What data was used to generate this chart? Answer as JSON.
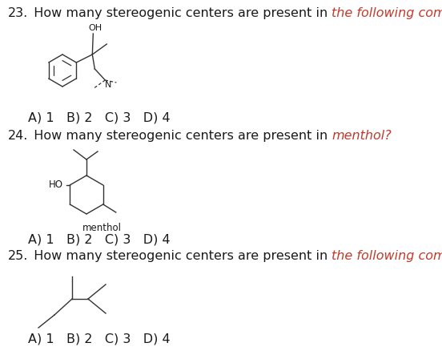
{
  "background_color": "#ffffff",
  "text_color": "#1a1a1a",
  "italic_color": "#c0392b",
  "line_color": "#333333",
  "font_size": 11.5,
  "q23_num": "23.",
  "q23_normal": "  How many stereogenic centers are present in ",
  "q23_italic": "the following compound?",
  "q23_answers": "A) 1   B) 2   C) 3   D) 4",
  "q24_num": "24.",
  "q24_normal": "  How many stereogenic centers are present in ",
  "q24_italic": "menthol?",
  "q24_answers": "A) 1   B) 2   C) 3   D) 4",
  "q24_label": "menthol",
  "q25_num": "25.",
  "q25_normal": "  How many stereogenic centers are present in ",
  "q25_italic": "the following compound?",
  "q25_answers": "A) 1   B) 2   C) 3   D) 4"
}
